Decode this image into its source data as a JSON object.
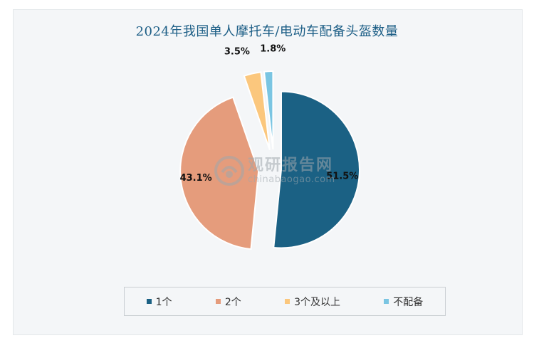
{
  "chart_data": {
    "type": "pie",
    "title": "2024年我国单人摩托车/电动车配备头盔数量",
    "categories": [
      "1个",
      "2个",
      "3个及以上",
      "不配备"
    ],
    "values": [
      51.5,
      43.1,
      3.5,
      1.8
    ],
    "labels": [
      "51.5%",
      "43.1%",
      "3.5%",
      "1.8%"
    ],
    "colors": [
      "#1b6184",
      "#e59c7c",
      "#fbc77d",
      "#7ac5e2"
    ],
    "exploded": true,
    "legend_position": "bottom"
  },
  "watermark": {
    "cn": "观研报告网",
    "en": "chinabaogao.com"
  }
}
